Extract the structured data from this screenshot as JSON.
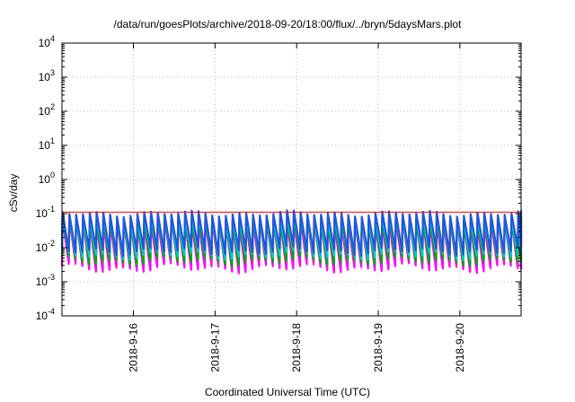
{
  "chart_data": {
    "type": "line",
    "title": "/data/run/goesPlots/archive/2018-09-20/18:00/flux/../bryn/5daysMars.plot",
    "xlabel": "Coordinated Universal Time (UTC)",
    "ylabel": "cSv/day",
    "yscale": "log",
    "ylim": [
      0.0001,
      10000
    ],
    "yticks": [
      {
        "base": "10",
        "exp": "-4"
      },
      {
        "base": "10",
        "exp": "-3"
      },
      {
        "base": "10",
        "exp": "-2"
      },
      {
        "base": "10",
        "exp": "-1"
      },
      {
        "base": "10",
        "exp": "0"
      },
      {
        "base": "10",
        "exp": "1"
      },
      {
        "base": "10",
        "exp": "2"
      },
      {
        "base": "10",
        "exp": "3"
      },
      {
        "base": "10",
        "exp": "4"
      }
    ],
    "xlim": [
      "2018-09-15 03:00",
      "2018-09-20 18:00"
    ],
    "xticks": [
      "2018-9-16",
      "2018-9-17",
      "2018-9-18",
      "2018-9-19",
      "2018-9-20"
    ],
    "grid": true,
    "reference_line": {
      "value": 0.11,
      "color": "#ff0000"
    },
    "period_hours": 2.0,
    "series": [
      {
        "color": "#ff00ff",
        "peak": 0.06,
        "trough": 0.0025
      },
      {
        "color": "#00aa00",
        "peak": 0.07,
        "trough": 0.004
      },
      {
        "color": "#00cccc",
        "peak": 0.08,
        "trough": 0.006
      },
      {
        "color": "#2255dd",
        "peak": 0.1,
        "trough": 0.008
      }
    ]
  }
}
